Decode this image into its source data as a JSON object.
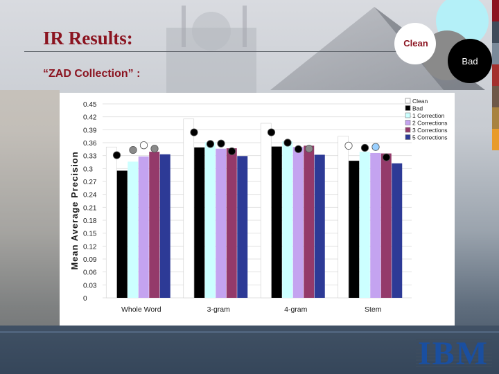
{
  "slide": {
    "title": "IR Results:",
    "subtitle": "“ZAD Collection” :",
    "venn_labels": [
      "Clean",
      "Bad"
    ],
    "logo": "IBM"
  },
  "colors": {
    "title": "#8b1420",
    "clean": "#ffffff",
    "bad": "#000000",
    "corr1": "#ccffff",
    "corr2": "#c4a3f0",
    "corr3": "#943a6a",
    "corr5": "#2d3a96",
    "venn_top": "#b4f0f8",
    "venn_left": "#ffffff",
    "venn_mid": "#8a8a8a",
    "venn_bad": "#000000",
    "ibm": "#1a4fa0"
  },
  "chart_data": {
    "type": "bar",
    "title": "",
    "ylabel": "Mean Average Precision",
    "xlabel": "",
    "ylim": [
      0,
      0.45
    ],
    "yticks": [
      "0",
      "0.03",
      "0.06",
      "0.09",
      "0.12",
      "0.15",
      "0.18",
      "0.21",
      "0.24",
      "0.27",
      "0.3",
      "0.33",
      "0.36",
      "0.39",
      "0.42",
      "0.45"
    ],
    "categories": [
      "Whole Word",
      "3-gram",
      "4-gram",
      "Stem"
    ],
    "grid": true,
    "legend": "top-right",
    "series": [
      {
        "name": "Clean",
        "color": "#ffffff",
        "values": [
          0.35,
          0.415,
          0.405,
          0.375
        ]
      },
      {
        "name": "Bad",
        "color": "#000000",
        "values": [
          0.295,
          0.349,
          0.351,
          0.318
        ]
      },
      {
        "name": "1 Correction",
        "color": "#ccffff",
        "values": [
          0.316,
          0.361,
          0.363,
          0.339
        ]
      },
      {
        "name": "2 Corrections",
        "color": "#c4a3f0",
        "values": [
          0.328,
          0.346,
          0.35,
          0.336
        ]
      },
      {
        "name": "3 Corrections",
        "color": "#943a6a",
        "values": [
          0.339,
          0.347,
          0.353,
          0.335
        ]
      },
      {
        "name": "5 Corrections",
        "color": "#2d3a96",
        "values": [
          0.333,
          0.329,
          0.332,
          0.312
        ]
      }
    ],
    "markers": [
      [
        {
          "value": 0.331,
          "color": "#000000"
        },
        {
          "value": 0.343,
          "color": "#8a8a8a"
        },
        {
          "value": 0.354,
          "color": "#ffffff"
        },
        {
          "value": 0.346,
          "color": "#8a8a8a"
        }
      ],
      [
        {
          "value": 0.384,
          "color": "#000000"
        },
        {
          "value": 0.357,
          "color": "#000000"
        },
        {
          "value": 0.358,
          "color": "#000000"
        },
        {
          "value": 0.34,
          "color": "#000000"
        }
      ],
      [
        {
          "value": 0.384,
          "color": "#000000"
        },
        {
          "value": 0.36,
          "color": "#000000"
        },
        {
          "value": 0.345,
          "color": "#000000"
        },
        {
          "value": 0.346,
          "color": "#8a8a8a"
        }
      ],
      [
        {
          "value": 0.353,
          "color": "#ffffff"
        },
        {
          "value": 0.348,
          "color": "#000000"
        },
        {
          "value": 0.35,
          "color": "#9ad0ff"
        },
        {
          "value": 0.326,
          "color": "#000000"
        }
      ]
    ]
  }
}
